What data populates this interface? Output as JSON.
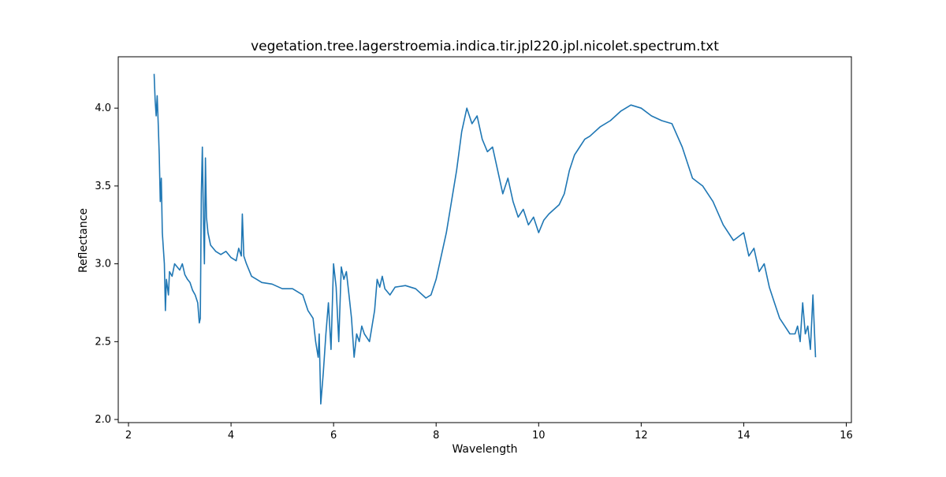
{
  "chart_data": {
    "type": "line",
    "title": "vegetation.tree.lagerstroemia.indica.tir.jpl220.jpl.nicolet.spectrum.txt",
    "xlabel": "Wavelength",
    "ylabel": "Reflectance",
    "xlim": [
      1.8,
      16.1
    ],
    "ylim": [
      1.98,
      4.33
    ],
    "xticks": [
      2,
      4,
      6,
      8,
      10,
      12,
      14,
      16
    ],
    "xtick_labels": [
      "2",
      "4",
      "6",
      "8",
      "10",
      "12",
      "14",
      "16"
    ],
    "yticks": [
      2.0,
      2.5,
      3.0,
      3.5,
      4.0
    ],
    "ytick_labels": [
      "2.0",
      "2.5",
      "3.0",
      "3.5",
      "4.0"
    ],
    "grid": false,
    "line_color": "#1f77b4",
    "series": [
      {
        "x": [
          2.5,
          2.52,
          2.54,
          2.56,
          2.58,
          2.6,
          2.62,
          2.64,
          2.66,
          2.68,
          2.7,
          2.72,
          2.74,
          2.76,
          2.78,
          2.8,
          2.85,
          2.9,
          2.95,
          3.0,
          3.05,
          3.1,
          3.15,
          3.2,
          3.25,
          3.3,
          3.35,
          3.38,
          3.4,
          3.42,
          3.44,
          3.46,
          3.48,
          3.5,
          3.52,
          3.55,
          3.6,
          3.7,
          3.8,
          3.9,
          4.0,
          4.1,
          4.15,
          4.2,
          4.22,
          4.25,
          4.3,
          4.4,
          4.5,
          4.6,
          4.8,
          5.0,
          5.2,
          5.4,
          5.5,
          5.6,
          5.65,
          5.7,
          5.72,
          5.75,
          5.8,
          5.85,
          5.9,
          5.95,
          6.0,
          6.05,
          6.1,
          6.15,
          6.2,
          6.25,
          6.3,
          6.35,
          6.4,
          6.45,
          6.5,
          6.55,
          6.6,
          6.7,
          6.8,
          6.85,
          6.9,
          6.95,
          7.0,
          7.1,
          7.2,
          7.4,
          7.6,
          7.8,
          7.9,
          8.0,
          8.1,
          8.2,
          8.3,
          8.4,
          8.5,
          8.6,
          8.7,
          8.8,
          8.9,
          9.0,
          9.1,
          9.2,
          9.3,
          9.4,
          9.5,
          9.6,
          9.7,
          9.8,
          9.9,
          10.0,
          10.1,
          10.2,
          10.3,
          10.4,
          10.5,
          10.6,
          10.7,
          10.8,
          10.9,
          11.0,
          11.2,
          11.4,
          11.6,
          11.8,
          12.0,
          12.2,
          12.4,
          12.6,
          12.8,
          13.0,
          13.2,
          13.4,
          13.6,
          13.8,
          14.0,
          14.1,
          14.2,
          14.3,
          14.4,
          14.5,
          14.6,
          14.7,
          14.8,
          14.9,
          15.0,
          15.05,
          15.1,
          15.15,
          15.2,
          15.25,
          15.3,
          15.35,
          15.4
        ],
        "y": [
          4.22,
          4.05,
          3.95,
          4.08,
          3.9,
          3.7,
          3.4,
          3.55,
          3.2,
          3.1,
          3.0,
          2.7,
          2.9,
          2.85,
          2.8,
          2.95,
          2.92,
          3.0,
          2.98,
          2.96,
          3.0,
          2.93,
          2.9,
          2.88,
          2.83,
          2.8,
          2.75,
          2.62,
          2.65,
          3.45,
          3.75,
          3.3,
          3.0,
          3.68,
          3.3,
          3.2,
          3.12,
          3.08,
          3.06,
          3.08,
          3.04,
          3.02,
          3.1,
          3.05,
          3.32,
          3.05,
          3.0,
          2.92,
          2.9,
          2.88,
          2.87,
          2.84,
          2.84,
          2.8,
          2.7,
          2.65,
          2.5,
          2.4,
          2.55,
          2.1,
          2.3,
          2.55,
          2.75,
          2.45,
          3.0,
          2.85,
          2.5,
          2.98,
          2.9,
          2.95,
          2.8,
          2.65,
          2.4,
          2.55,
          2.5,
          2.6,
          2.55,
          2.5,
          2.7,
          2.9,
          2.85,
          2.92,
          2.84,
          2.8,
          2.85,
          2.86,
          2.84,
          2.78,
          2.8,
          2.9,
          3.05,
          3.2,
          3.4,
          3.6,
          3.85,
          4.0,
          3.9,
          3.95,
          3.8,
          3.72,
          3.75,
          3.6,
          3.45,
          3.55,
          3.4,
          3.3,
          3.35,
          3.25,
          3.3,
          3.2,
          3.28,
          3.32,
          3.35,
          3.38,
          3.45,
          3.6,
          3.7,
          3.75,
          3.8,
          3.82,
          3.88,
          3.92,
          3.98,
          4.02,
          4.0,
          3.95,
          3.92,
          3.9,
          3.75,
          3.55,
          3.5,
          3.4,
          3.25,
          3.15,
          3.2,
          3.05,
          3.1,
          2.95,
          3.0,
          2.85,
          2.75,
          2.65,
          2.6,
          2.55,
          2.55,
          2.6,
          2.5,
          2.75,
          2.55,
          2.6,
          2.45,
          2.8,
          2.4
        ]
      }
    ]
  }
}
